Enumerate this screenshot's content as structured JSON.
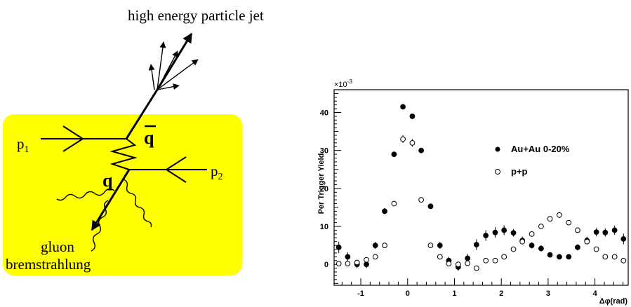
{
  "diagram": {
    "jet_label": "high energy particle jet",
    "p1_base": "p",
    "p1_sub": "1",
    "p2_base": "p",
    "p2_sub": "2",
    "qbar_label": "q",
    "q_label": "q",
    "gluon_line1": "gluon",
    "gluon_line2": "bremstrahlung",
    "box_color": "#ffff00"
  },
  "chart_data": {
    "type": "scatter",
    "ylabel": "Per Trigger Yield",
    "xlabel": "Δφ(rad)",
    "y_multiplier_base": "×10",
    "y_multiplier_exp": "-3",
    "xlim": [
      -1.57,
      4.71
    ],
    "ylim": [
      -5.5,
      46
    ],
    "xticks": [
      -1,
      0,
      1,
      2,
      3,
      4
    ],
    "yticks": [
      0,
      10,
      20,
      30,
      40
    ],
    "legend_position": "right",
    "series": [
      {
        "name": "Au+Au 0-20%",
        "marker": "filled-circle",
        "x": [
          -1.47,
          -1.28,
          -1.08,
          -0.88,
          -0.69,
          -0.49,
          -0.29,
          -0.1,
          0.1,
          0.29,
          0.49,
          0.69,
          0.88,
          1.08,
          1.28,
          1.47,
          1.67,
          1.87,
          2.06,
          2.26,
          2.45,
          2.65,
          2.85,
          3.04,
          3.24,
          3.44,
          3.63,
          3.83,
          4.03,
          4.22,
          4.42,
          4.61
        ],
        "y": [
          4.5,
          2.0,
          0.0,
          0.0,
          5.0,
          14.0,
          29.0,
          41.5,
          39.0,
          30.0,
          15.3,
          5.0,
          1.0,
          -0.7,
          1.6,
          5.2,
          7.6,
          8.4,
          9.0,
          8.3,
          6.3,
          5.0,
          4.2,
          2.5,
          2.0,
          2.0,
          4.5,
          6.3,
          8.5,
          8.4,
          9.0,
          6.7
        ],
        "err": [
          1.5,
          1.2,
          1.0,
          1.0,
          0.9,
          0.8,
          0.6,
          0.5,
          0.5,
          0.6,
          0.7,
          0.9,
          1.0,
          1.0,
          1.2,
          1.4,
          1.4,
          1.4,
          1.3,
          1.0,
          1.0,
          0.8,
          0.8,
          0.7,
          0.6,
          0.7,
          0.8,
          1.0,
          1.1,
          1.1,
          1.2,
          1.4
        ]
      },
      {
        "name": "p+p",
        "marker": "open-circle",
        "x": [
          -1.47,
          -1.28,
          -1.08,
          -0.88,
          -0.69,
          -0.49,
          -0.29,
          -0.1,
          0.1,
          0.29,
          0.49,
          0.69,
          0.88,
          1.08,
          1.28,
          1.47,
          1.67,
          1.87,
          2.06,
          2.26,
          2.45,
          2.65,
          2.85,
          3.04,
          3.24,
          3.44,
          3.63,
          3.83,
          4.03,
          4.22,
          4.42,
          4.61
        ],
        "y": [
          0.2,
          0.2,
          0.5,
          1.2,
          2.0,
          5.0,
          16.0,
          33.0,
          32.0,
          17.0,
          5.0,
          2.0,
          0.2,
          0.0,
          0.3,
          -1.0,
          1.0,
          1.0,
          2.0,
          4.0,
          6.0,
          8.0,
          10.0,
          12.0,
          13.0,
          11.0,
          9.0,
          6.0,
          4.0,
          2.0,
          2.0,
          1.0
        ],
        "err": [
          0.5,
          0.5,
          0.5,
          0.5,
          0.5,
          0.5,
          0.6,
          1.0,
          1.0,
          0.6,
          0.5,
          0.5,
          0.5,
          0.5,
          0.5,
          0.5,
          0.5,
          0.5,
          0.5,
          0.5,
          0.5,
          0.5,
          0.5,
          0.5,
          0.8,
          0.5,
          0.5,
          0.5,
          0.5,
          0.5,
          0.5,
          0.5
        ]
      }
    ]
  }
}
